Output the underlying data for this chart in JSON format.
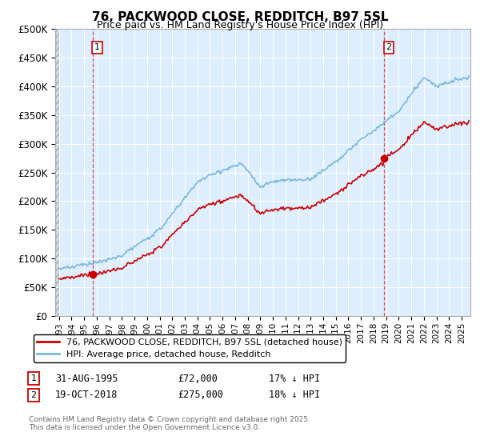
{
  "title": "76, PACKWOOD CLOSE, REDDITCH, B97 5SL",
  "subtitle": "Price paid vs. HM Land Registry's House Price Index (HPI)",
  "ylim": [
    0,
    500000
  ],
  "yticks": [
    0,
    50000,
    100000,
    150000,
    200000,
    250000,
    300000,
    350000,
    400000,
    450000,
    500000
  ],
  "ytick_labels": [
    "£0",
    "£50K",
    "£100K",
    "£150K",
    "£200K",
    "£250K",
    "£300K",
    "£350K",
    "£400K",
    "£450K",
    "£500K"
  ],
  "hpi_color": "#7ab8d9",
  "price_color": "#cc0000",
  "background_plot": "#ddeeff",
  "background_fig": "#ffffff",
  "grid_color": "#ffffff",
  "sale1_t": 1995.667,
  "sale1_price": 72000,
  "sale2_t": 2018.833,
  "sale2_price": 275000,
  "legend_line1": "76, PACKWOOD CLOSE, REDDITCH, B97 5SL (detached house)",
  "legend_line2": "HPI: Average price, detached house, Redditch",
  "footnote": "Contains HM Land Registry data © Crown copyright and database right 2025.\nThis data is licensed under the Open Government Licence v3.0.",
  "xlim_start": 1992.7,
  "xlim_end": 2025.7,
  "sale1_ann": "31-AUG-1995",
  "sale1_price_str": "£72,000",
  "sale1_hpi_str": "17% ↓ HPI",
  "sale2_ann": "19-OCT-2018",
  "sale2_price_str": "£275,000",
  "sale2_hpi_str": "18% ↓ HPI"
}
